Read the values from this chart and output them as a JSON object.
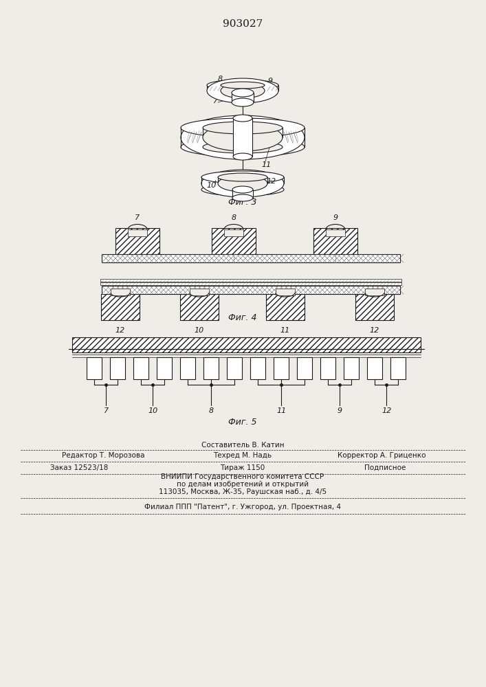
{
  "title": "903027",
  "bg_color": "#f0ede8",
  "line_color": "#1a1a1a",
  "fig3_caption": "Фиг. 3",
  "fig4_caption": "Фиг. 4",
  "fig5_caption": "Фиг. 5",
  "label_fs": 8,
  "caption_fs": 9,
  "footer_fs": 7.5,
  "title_fs": 11
}
